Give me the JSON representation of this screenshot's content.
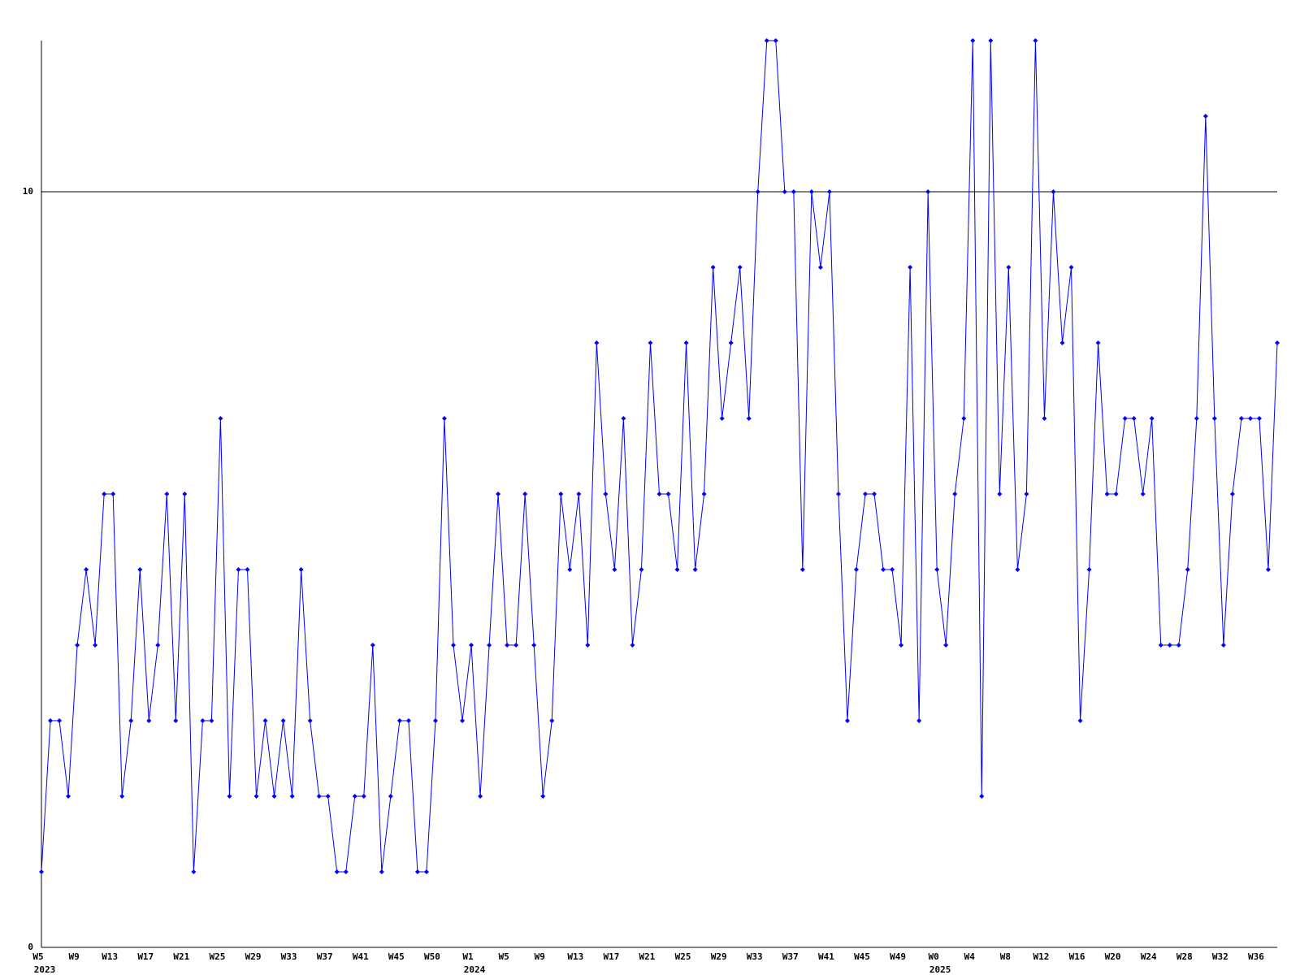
{
  "chart_data": {
    "type": "line",
    "categories": [
      "W5",
      null,
      null,
      null,
      "W9",
      null,
      null,
      null,
      "W13",
      null,
      null,
      null,
      "W17",
      null,
      null,
      null,
      "W21",
      null,
      null,
      null,
      "W25",
      null,
      null,
      null,
      "W29",
      null,
      null,
      null,
      "W33",
      null,
      null,
      null,
      "W37",
      null,
      null,
      null,
      "W41",
      null,
      null,
      null,
      "W45",
      null,
      null,
      null,
      "W50",
      null,
      null,
      null,
      "W1",
      null,
      null,
      null,
      "W5",
      null,
      null,
      null,
      "W9",
      null,
      null,
      null,
      "W13",
      null,
      null,
      null,
      "W17",
      null,
      null,
      null,
      "W21",
      null,
      null,
      null,
      "W25",
      null,
      null,
      null,
      "W29",
      null,
      null,
      null,
      "W33",
      null,
      null,
      null,
      "W37",
      null,
      null,
      null,
      "W41",
      null,
      null,
      null,
      "W45",
      null,
      null,
      null,
      "W49",
      null,
      null,
      null,
      "W0",
      null,
      null,
      null,
      "W4",
      null,
      null,
      null,
      "W8",
      null,
      null,
      null,
      "W12",
      null,
      null,
      null,
      "W16",
      null,
      null,
      null,
      "W20",
      null,
      null,
      null,
      "W24",
      null,
      null,
      null,
      "W28",
      null,
      null,
      null,
      "W32",
      null,
      null,
      null,
      "W36",
      null,
      null
    ],
    "years": [
      "2023",
      null,
      null,
      null,
      null,
      null,
      null,
      null,
      null,
      null,
      null,
      null,
      null,
      null,
      null,
      null,
      null,
      null,
      null,
      null,
      null,
      null,
      null,
      null,
      null,
      null,
      null,
      null,
      null,
      null,
      null,
      null,
      null,
      null,
      null,
      null,
      null,
      null,
      null,
      null,
      null,
      null,
      null,
      null,
      null,
      null,
      null,
      null,
      "2024",
      null,
      null,
      null,
      null,
      null,
      null,
      null,
      null,
      null,
      null,
      null,
      null,
      null,
      null,
      null,
      null,
      null,
      null,
      null,
      null,
      null,
      null,
      null,
      null,
      null,
      null,
      null,
      null,
      null,
      null,
      null,
      null,
      null,
      null,
      null,
      null,
      null,
      null,
      null,
      null,
      null,
      null,
      null,
      null,
      null,
      null,
      null,
      null,
      null,
      null,
      null,
      "2025",
      null,
      null,
      null,
      null,
      null,
      null,
      null,
      null,
      null,
      null,
      null,
      null,
      null,
      null,
      null,
      null,
      null,
      null,
      null,
      null,
      null,
      null,
      null,
      null,
      null,
      null,
      null,
      null,
      null,
      null,
      null,
      null,
      null,
      null,
      null,
      null,
      null
    ],
    "values": [
      1,
      3,
      3,
      2,
      4,
      5,
      4,
      6,
      6,
      2,
      3,
      5,
      3,
      4,
      6,
      3,
      6,
      1,
      3,
      3,
      7,
      2,
      5,
      5,
      2,
      3,
      2,
      3,
      2,
      5,
      3,
      2,
      2,
      1,
      1,
      2,
      2,
      4,
      1,
      2,
      3,
      3,
      1,
      1,
      3,
      7,
      4,
      3,
      4,
      2,
      4,
      6,
      4,
      4,
      6,
      4,
      2,
      3,
      6,
      5,
      6,
      4,
      8,
      6,
      5,
      7,
      4,
      5,
      8,
      6,
      6,
      5,
      8,
      5,
      6,
      9,
      7,
      8,
      9,
      7,
      10,
      12,
      12,
      10,
      10,
      5,
      10,
      9,
      10,
      6,
      3,
      5,
      6,
      6,
      5,
      5,
      4,
      9,
      3,
      10,
      5,
      4,
      6,
      7,
      12,
      2,
      12,
      6,
      9,
      5,
      6,
      12,
      7,
      10,
      8,
      9,
      3,
      5,
      8,
      6,
      6,
      7,
      7,
      6,
      7,
      4,
      4,
      4,
      5,
      7,
      11,
      7,
      4,
      6,
      7,
      7,
      7,
      5,
      8
    ],
    "color": "#0000ff",
    "axis_color": "#000000",
    "ylim": [
      0,
      12
    ],
    "yticks": [
      0,
      10
    ],
    "grid": true
  }
}
